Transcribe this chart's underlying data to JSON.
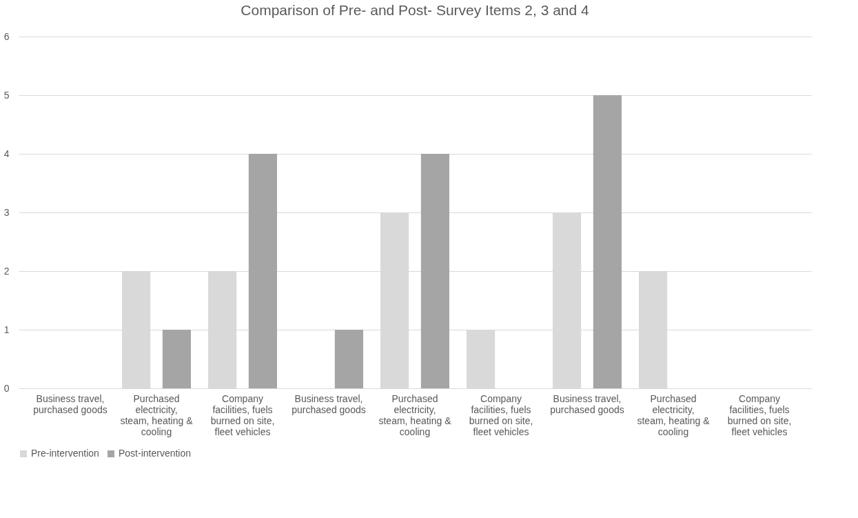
{
  "chart_data": {
    "type": "bar",
    "title": "Comparison of Pre- and Post- Survey Items 2, 3 and 4",
    "categories": [
      "Business travel, purchased goods",
      "Purchased electricity, steam, heating & cooling",
      "Company facilities, fuels burned on site, fleet vehicles",
      "Business travel, purchased goods",
      "Purchased electricity, steam, heating & cooling",
      "Company facilities, fuels burned on site, fleet vehicles",
      "Business travel, purchased goods",
      "Purchased electricity, steam, heating & cooling",
      "Company facilities, fuels burned on site, fleet vehicles"
    ],
    "series": [
      {
        "name": "Pre-intervention",
        "color": "#d9d9d9",
        "values": [
          0,
          2,
          2,
          0,
          3,
          1,
          3,
          2,
          0
        ]
      },
      {
        "name": "Post-intervention",
        "color": "#a5a5a5",
        "values": [
          0,
          1,
          4,
          1,
          4,
          0,
          5,
          0,
          0
        ]
      }
    ],
    "ylim": [
      0,
      6
    ],
    "yticks": [
      0,
      1,
      2,
      3,
      4,
      5,
      6
    ],
    "grid": "y",
    "legend": "bottom"
  }
}
